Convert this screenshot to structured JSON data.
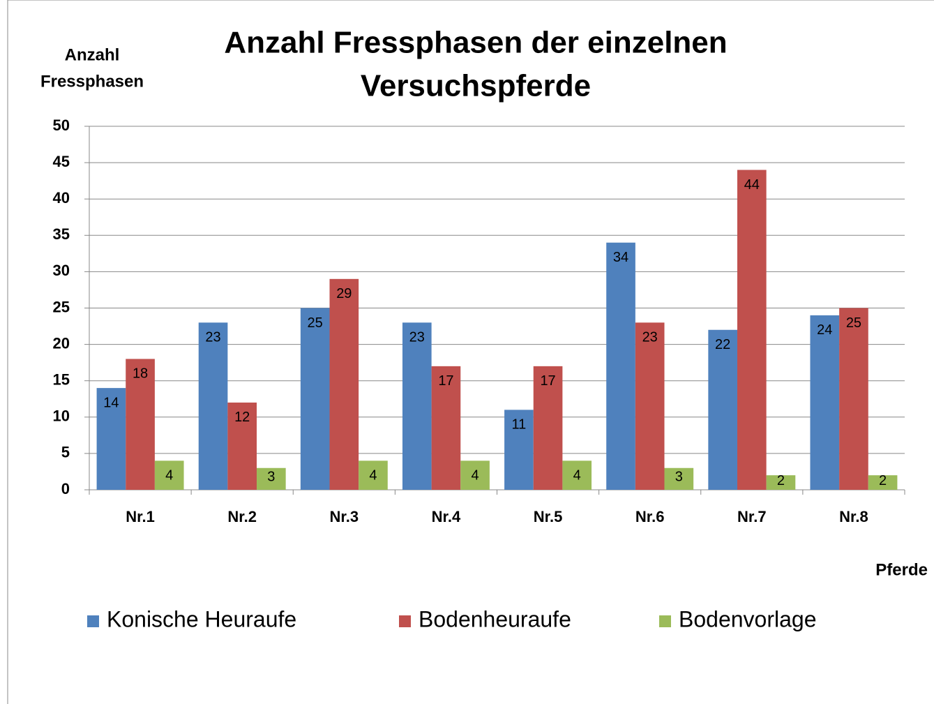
{
  "chart_data": {
    "type": "bar",
    "title": [
      "Anzahl Fressphasen der einzelnen",
      "Versuchspferde"
    ],
    "y_label": [
      "Anzahl",
      "Fressphasen"
    ],
    "x_label": "Pferde",
    "categories": [
      "Nr.1",
      "Nr.2",
      "Nr.3",
      "Nr.4",
      "Nr.5",
      "Nr.6",
      "Nr.7",
      "Nr.8"
    ],
    "series": [
      {
        "name": "Konische Heuraufe",
        "color": "#4f81bd",
        "values": [
          14,
          23,
          25,
          23,
          11,
          34,
          22,
          24
        ]
      },
      {
        "name": "Bodenheuraufe",
        "color": "#c0504d",
        "values": [
          18,
          12,
          29,
          17,
          17,
          23,
          44,
          25
        ]
      },
      {
        "name": "Bodenvorlage",
        "color": "#9bbb59",
        "values": [
          4,
          3,
          4,
          4,
          4,
          3,
          2,
          2
        ]
      }
    ],
    "ylim": [
      0,
      50
    ],
    "yticks": [
      0,
      5,
      10,
      15,
      20,
      25,
      30,
      35,
      40,
      45,
      50
    ],
    "grid": true,
    "legend": "bottom"
  }
}
